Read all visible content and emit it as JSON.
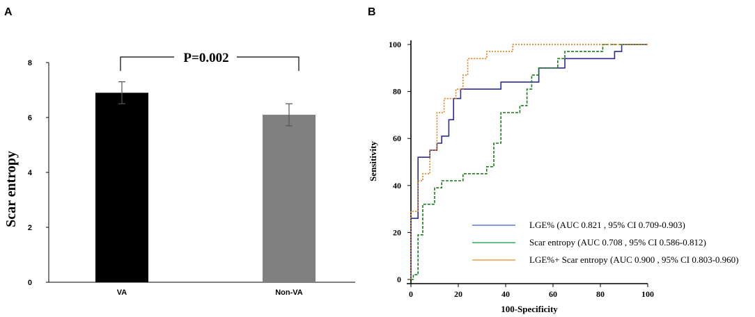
{
  "panel_a_letter": "A",
  "panel_b_letter": "B",
  "chart_data": [
    {
      "type": "bar",
      "panel": "A",
      "categories": [
        "VA",
        "Non-VA"
      ],
      "values": [
        6.9,
        6.1
      ],
      "errors": [
        0.4,
        0.4
      ],
      "colors": [
        "#000000",
        "#808080"
      ],
      "ylabel": "Scar  entropy",
      "xlabel": "",
      "ylim": [
        0,
        8
      ],
      "yticks": [
        "0",
        "2",
        "4",
        "6",
        "8"
      ],
      "annotation": "P=0.002"
    },
    {
      "type": "line",
      "panel": "B",
      "xlabel": "100-Specificity",
      "ylabel": "Sensitivity",
      "xlim": [
        0,
        100
      ],
      "ylim": [
        0,
        100
      ],
      "xticks": [
        "0",
        "20",
        "40",
        "60",
        "80",
        "100"
      ],
      "yticks": [
        "0",
        "20",
        "40",
        "60",
        "80",
        "100"
      ],
      "series": [
        {
          "name": "LGE% (AUC 0.821 , 95% CI 0.709-0.903)",
          "color": "#2b2b9a",
          "legend_color": "#5b7bd6",
          "style": "solid",
          "points": [
            [
              0,
              0
            ],
            [
              0,
              26
            ],
            [
              3,
              26
            ],
            [
              3,
              52
            ],
            [
              8,
              52
            ],
            [
              8,
              55
            ],
            [
              11,
              55
            ],
            [
              11,
              58
            ],
            [
              13,
              58
            ],
            [
              13,
              61
            ],
            [
              16,
              61
            ],
            [
              16,
              68
            ],
            [
              18,
              68
            ],
            [
              18,
              77
            ],
            [
              21,
              77
            ],
            [
              21,
              81
            ],
            [
              38,
              81
            ],
            [
              38,
              84
            ],
            [
              54,
              84
            ],
            [
              54,
              90
            ],
            [
              65,
              90
            ],
            [
              65,
              94
            ],
            [
              86,
              94
            ],
            [
              86,
              97
            ],
            [
              89,
              97
            ],
            [
              89,
              100
            ],
            [
              100,
              100
            ]
          ]
        },
        {
          "name": "Scar entropy (AUC 0.708 , 95% CI 0.586-0.812)",
          "color": "#1a7a1a",
          "legend_color": "#2fae5a",
          "style": "dashed",
          "points": [
            [
              0,
              0
            ],
            [
              1,
              0
            ],
            [
              1,
              2
            ],
            [
              3,
              2
            ],
            [
              3,
              19
            ],
            [
              5,
              19
            ],
            [
              5,
              32
            ],
            [
              10,
              32
            ],
            [
              10,
              39
            ],
            [
              13,
              39
            ],
            [
              13,
              42
            ],
            [
              22,
              42
            ],
            [
              22,
              45
            ],
            [
              32,
              45
            ],
            [
              32,
              48
            ],
            [
              35,
              48
            ],
            [
              35,
              58
            ],
            [
              38,
              58
            ],
            [
              38,
              71
            ],
            [
              46,
              71
            ],
            [
              46,
              74
            ],
            [
              49,
              74
            ],
            [
              49,
              81
            ],
            [
              51,
              81
            ],
            [
              51,
              87
            ],
            [
              54,
              87
            ],
            [
              54,
              90
            ],
            [
              62,
              90
            ],
            [
              62,
              94
            ],
            [
              65,
              94
            ],
            [
              65,
              97
            ],
            [
              81,
              97
            ],
            [
              81,
              100
            ],
            [
              100,
              100
            ]
          ]
        },
        {
          "name": "LGE%+ Scar entropy (AUC 0.900 , 95% CI 0.803-0.960)",
          "color": "#e07a10",
          "legend_color": "#f39a4a",
          "style": "dotted",
          "points": [
            [
              0,
              0
            ],
            [
              0,
              29
            ],
            [
              3,
              29
            ],
            [
              3,
              42
            ],
            [
              5,
              42
            ],
            [
              5,
              45
            ],
            [
              8,
              45
            ],
            [
              8,
              55
            ],
            [
              11,
              55
            ],
            [
              11,
              71
            ],
            [
              14,
              71
            ],
            [
              14,
              77
            ],
            [
              19,
              77
            ],
            [
              19,
              81
            ],
            [
              22,
              81
            ],
            [
              22,
              87
            ],
            [
              24,
              87
            ],
            [
              24,
              94
            ],
            [
              32,
              94
            ],
            [
              32,
              97
            ],
            [
              43,
              97
            ],
            [
              43,
              100
            ],
            [
              100,
              100
            ]
          ]
        }
      ]
    }
  ]
}
